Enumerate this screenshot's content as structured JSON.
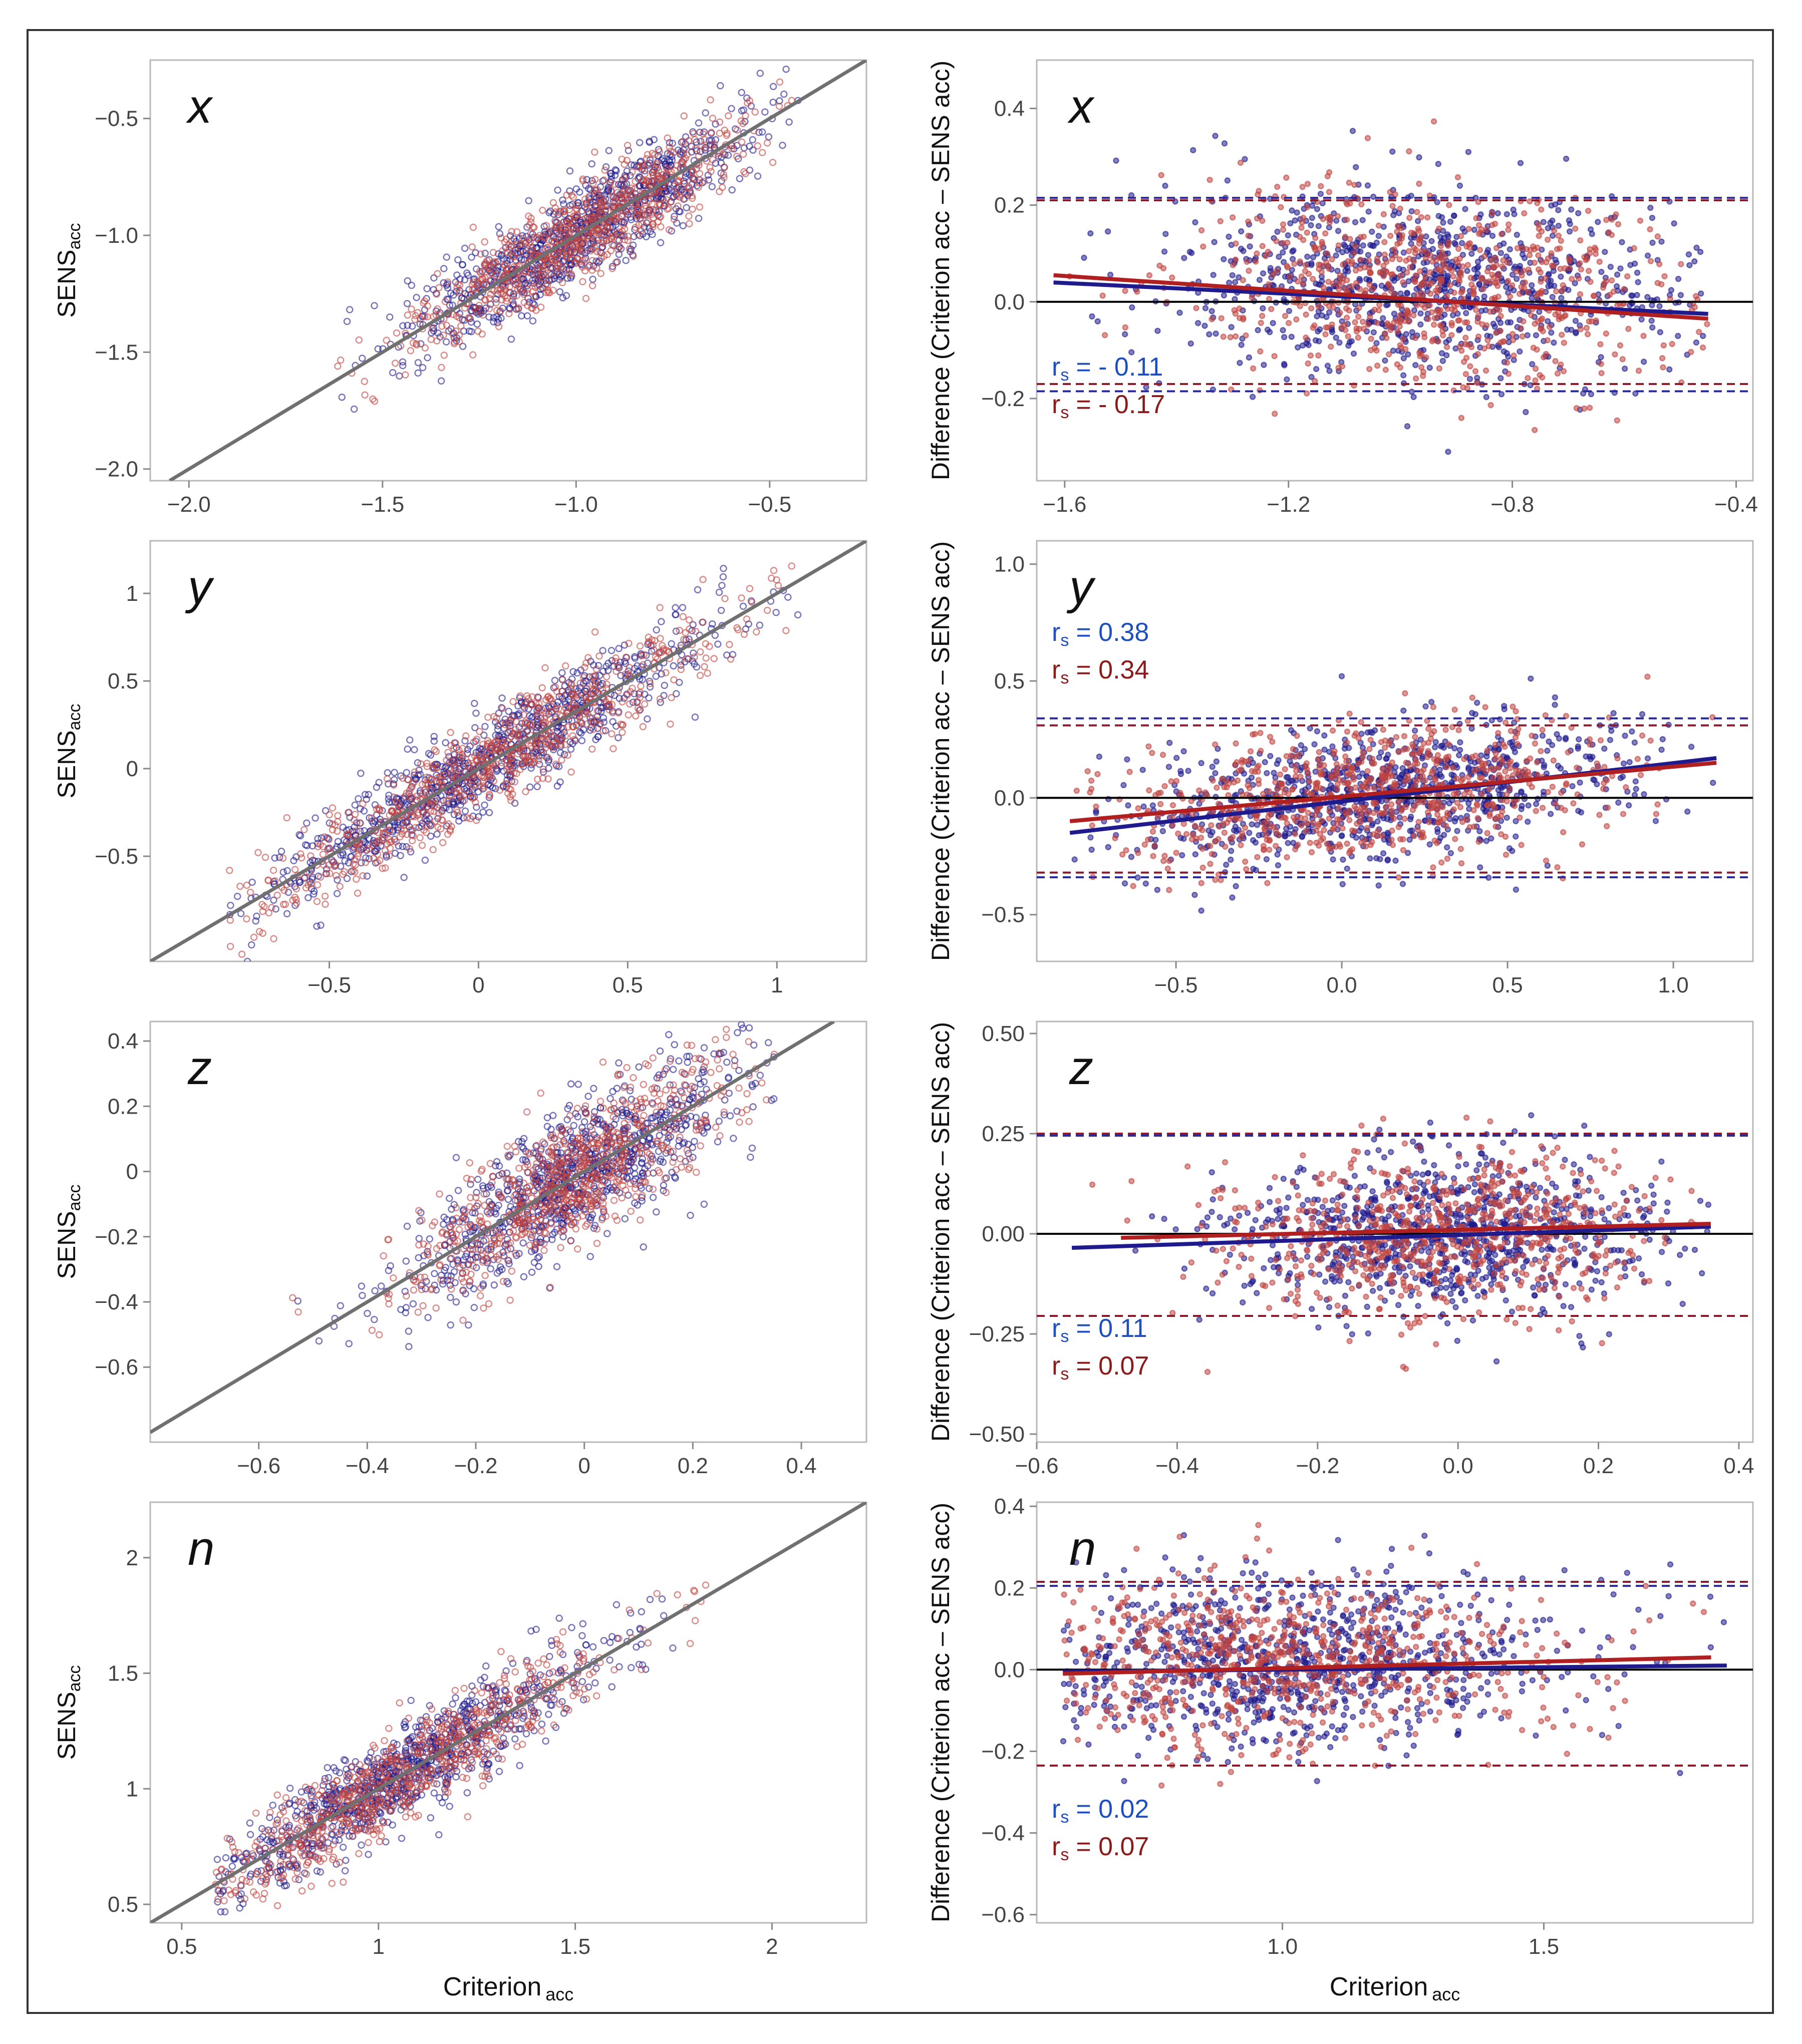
{
  "common": {
    "scatter_ylabel_main": "SENS",
    "scatter_ylabel_sub": "acc",
    "bland_ylabel": "Difference (Criterion acc – SENS acc)",
    "xlabel_main": "Criterion",
    "xlabel_sub": "acc",
    "rs_label": "r",
    "rs_sub": "s"
  },
  "colors": {
    "blue": "#1f1b8c",
    "red": "#c0443f",
    "blue_text": "#1f4fbf",
    "red_text": "#8b1a1a",
    "identity": "#707070",
    "zero_line": "#000000",
    "limit_blue": "#2a2a9a",
    "limit_red": "#8b1a2a"
  },
  "chart_data": [
    {
      "type": "scatter",
      "panel": "x-scatter",
      "title": "x",
      "xlim": [
        -2.1,
        -0.25
      ],
      "ylim": [
        -2.05,
        -0.25
      ],
      "xticks": [
        "−2.0",
        "−1.5",
        "−1.0",
        "−0.5"
      ],
      "xtick_values": [
        -2.0,
        -1.5,
        -1.0,
        -0.5
      ],
      "yticks": [
        "−0.5",
        "−1.0",
        "−1.5",
        "−2.0"
      ],
      "ytick_values": [
        -0.5,
        -1.0,
        -1.5,
        -2.0
      ],
      "identity_line": true,
      "cloud": {
        "x_center": -1.0,
        "x_spread": 0.22,
        "slope": 1.0,
        "intercept": 0.0,
        "noise": 0.1,
        "x_range": [
          -1.65,
          -0.42
        ]
      },
      "series": [
        {
          "color": "blue",
          "n": 900
        },
        {
          "color": "red",
          "n": 750
        }
      ]
    },
    {
      "type": "scatter",
      "panel": "x-bland",
      "title": "x",
      "xlim": [
        -1.65,
        -0.37
      ],
      "ylim": [
        -0.37,
        0.5
      ],
      "xticks": [
        "−1.6",
        "−1.2",
        "−0.8",
        "−0.4"
      ],
      "xtick_values": [
        -1.6,
        -1.2,
        -0.8,
        -0.4
      ],
      "yticks": [
        "0.4",
        "0.2",
        "0.0",
        "−0.2"
      ],
      "ytick_values": [
        0.4,
        0.2,
        0.0,
        -0.2
      ],
      "zero_line": 0.0,
      "limits": {
        "blue": [
          0.215,
          -0.185
        ],
        "red": [
          0.21,
          -0.17
        ]
      },
      "regression": {
        "blue": [
          [
            -1.62,
            0.04
          ],
          [
            -0.45,
            -0.025
          ]
        ],
        "red": [
          [
            -1.62,
            0.055
          ],
          [
            -0.45,
            -0.035
          ]
        ]
      },
      "rs": [
        {
          "color": "blue",
          "text": "= - 0.11"
        },
        {
          "color": "red",
          "text": "= - 0.17"
        }
      ],
      "cloud": {
        "x_center": -0.95,
        "x_spread": 0.22,
        "slope": -0.06,
        "intercept": -0.02,
        "noise": 0.1,
        "x_range": [
          -1.62,
          -0.45
        ]
      },
      "series": [
        {
          "color": "blue",
          "n": 900
        },
        {
          "color": "red",
          "n": 750
        }
      ]
    },
    {
      "type": "scatter",
      "panel": "y-scatter",
      "title": "y",
      "xlim": [
        -1.1,
        1.3
      ],
      "ylim": [
        -1.1,
        1.3
      ],
      "xticks": [
        "−0.5",
        "0",
        "0.5",
        "1"
      ],
      "xtick_values": [
        -0.5,
        0,
        0.5,
        1
      ],
      "yticks": [
        "1",
        "0.5",
        "0",
        "−0.5"
      ],
      "ytick_values": [
        1,
        0.5,
        0,
        -0.5
      ],
      "identity_line": true,
      "cloud": {
        "x_center": 0.05,
        "x_spread": 0.38,
        "slope": 1.0,
        "intercept": 0.0,
        "noise": 0.13,
        "x_range": [
          -0.85,
          1.15
        ]
      },
      "series": [
        {
          "color": "blue",
          "n": 900
        },
        {
          "color": "red",
          "n": 750
        }
      ]
    },
    {
      "type": "scatter",
      "panel": "y-bland",
      "title": "y",
      "xlim": [
        -0.92,
        1.24
      ],
      "ylim": [
        -0.7,
        1.1
      ],
      "xticks": [
        "−0.5",
        "0.0",
        "0.5",
        "1.0"
      ],
      "xtick_values": [
        -0.5,
        0.0,
        0.5,
        1.0
      ],
      "yticks": [
        "1.0",
        "0.5",
        "0.0",
        "−0.5"
      ],
      "ytick_values": [
        1.0,
        0.5,
        0.0,
        -0.5
      ],
      "zero_line": 0.0,
      "limits": {
        "blue": [
          0.34,
          -0.34
        ],
        "red": [
          0.31,
          -0.32
        ]
      },
      "regression": {
        "blue": [
          [
            -0.82,
            -0.15
          ],
          [
            1.13,
            0.17
          ]
        ],
        "red": [
          [
            -0.82,
            -0.1
          ],
          [
            1.13,
            0.15
          ]
        ]
      },
      "rs": [
        {
          "color": "blue",
          "text": "=  0.38"
        },
        {
          "color": "red",
          "text": "=  0.34"
        }
      ],
      "cloud": {
        "x_center": 0.1,
        "x_spread": 0.38,
        "slope": 0.16,
        "intercept": 0.0,
        "noise": 0.14,
        "x_range": [
          -0.82,
          1.13
        ]
      },
      "series": [
        {
          "color": "blue",
          "n": 900
        },
        {
          "color": "red",
          "n": 750
        }
      ]
    },
    {
      "type": "scatter",
      "panel": "z-scatter",
      "title": "z",
      "xlim": [
        -0.8,
        0.52
      ],
      "ylim": [
        -0.83,
        0.46
      ],
      "xticks": [
        "−0.6",
        "−0.4",
        "−0.2",
        "0",
        "0.2",
        "0.4"
      ],
      "xtick_values": [
        -0.6,
        -0.4,
        -0.2,
        0,
        0.2,
        0.4
      ],
      "yticks": [
        "0.4",
        "0.2",
        "0",
        "−0.2",
        "−0.4",
        "−0.6"
      ],
      "ytick_values": [
        0.4,
        0.2,
        0,
        -0.2,
        -0.4,
        -0.6
      ],
      "identity_line": true,
      "cloud": {
        "x_center": -0.02,
        "x_spread": 0.15,
        "slope": 1.0,
        "intercept": 0.0,
        "noise": 0.1,
        "x_range": [
          -0.56,
          0.35
        ]
      },
      "series": [
        {
          "color": "blue",
          "n": 900
        },
        {
          "color": "red",
          "n": 750
        }
      ]
    },
    {
      "type": "scatter",
      "panel": "z-bland",
      "title": "z",
      "xlim": [
        -0.6,
        0.42
      ],
      "ylim": [
        -0.52,
        0.53
      ],
      "xticks": [
        "−0.6",
        "−0.4",
        "−0.2",
        "0.0",
        "0.2",
        "0.4"
      ],
      "xtick_values": [
        -0.6,
        -0.4,
        -0.2,
        0.0,
        0.2,
        0.4
      ],
      "yticks": [
        "0.50",
        "0.25",
        "0.00",
        "−0.25",
        "−0.50"
      ],
      "ytick_values": [
        0.5,
        0.25,
        0.0,
        -0.25,
        -0.5
      ],
      "zero_line": 0.0,
      "limits": {
        "blue": [
          0.245,
          -0.205
        ],
        "red": [
          0.25,
          -0.205
        ]
      },
      "regression": {
        "blue": [
          [
            -0.55,
            -0.035
          ],
          [
            0.36,
            0.018
          ]
        ],
        "red": [
          [
            -0.48,
            -0.01
          ],
          [
            0.36,
            0.025
          ]
        ]
      },
      "rs": [
        {
          "color": "blue",
          "text": "=  0.11"
        },
        {
          "color": "red",
          "text": "=  0.07"
        }
      ],
      "cloud": {
        "x_center": -0.02,
        "x_spread": 0.15,
        "slope": 0.05,
        "intercept": 0.0,
        "noise": 0.1,
        "x_range": [
          -0.55,
          0.36
        ]
      },
      "series": [
        {
          "color": "blue",
          "n": 900
        },
        {
          "color": "red",
          "n": 750
        }
      ]
    },
    {
      "type": "scatter",
      "panel": "n-scatter",
      "title": "n",
      "xlim": [
        0.42,
        2.24
      ],
      "ylim": [
        0.42,
        2.24
      ],
      "xticks": [
        "0.5",
        "1",
        "1.5",
        "2"
      ],
      "xtick_values": [
        0.5,
        1,
        1.5,
        2
      ],
      "yticks": [
        "2",
        "1.5",
        "1",
        "0.5"
      ],
      "ytick_values": [
        2,
        1.5,
        1,
        0.5
      ],
      "identity_line": true,
      "cloud": {
        "x_center": 1.05,
        "x_spread": 0.25,
        "slope": 1.0,
        "intercept": 0.0,
        "noise": 0.1,
        "x_range": [
          0.58,
          1.85
        ]
      },
      "series": [
        {
          "color": "blue",
          "n": 900
        },
        {
          "color": "red",
          "n": 750
        }
      ]
    },
    {
      "type": "scatter",
      "panel": "n-bland",
      "title": "n",
      "xlim": [
        0.53,
        1.9
      ],
      "ylim": [
        -0.62,
        0.41
      ],
      "xticks": [
        "1.0",
        "1.5"
      ],
      "xtick_values": [
        1.0,
        1.5
      ],
      "yticks": [
        "0.4",
        "0.2",
        "0.0",
        "−0.2",
        "−0.4",
        "−0.6"
      ],
      "ytick_values": [
        0.4,
        0.2,
        0.0,
        -0.2,
        -0.4,
        -0.6
      ],
      "zero_line": 0.0,
      "limits": {
        "blue": [
          0.205,
          -0.235
        ],
        "red": [
          0.215,
          -0.235
        ]
      },
      "regression": {
        "blue": [
          [
            0.58,
            -0.005
          ],
          [
            1.85,
            0.01
          ]
        ],
        "red": [
          [
            0.58,
            -0.01
          ],
          [
            1.82,
            0.03
          ]
        ]
      },
      "rs": [
        {
          "color": "blue",
          "text": "=  0.02"
        },
        {
          "color": "red",
          "text": "=  0.07"
        }
      ],
      "cloud": {
        "x_center": 1.0,
        "x_spread": 0.25,
        "slope": 0.02,
        "intercept": 0.0,
        "noise": 0.1,
        "x_range": [
          0.58,
          1.85
        ]
      },
      "series": [
        {
          "color": "blue",
          "n": 900
        },
        {
          "color": "red",
          "n": 750
        }
      ]
    }
  ]
}
